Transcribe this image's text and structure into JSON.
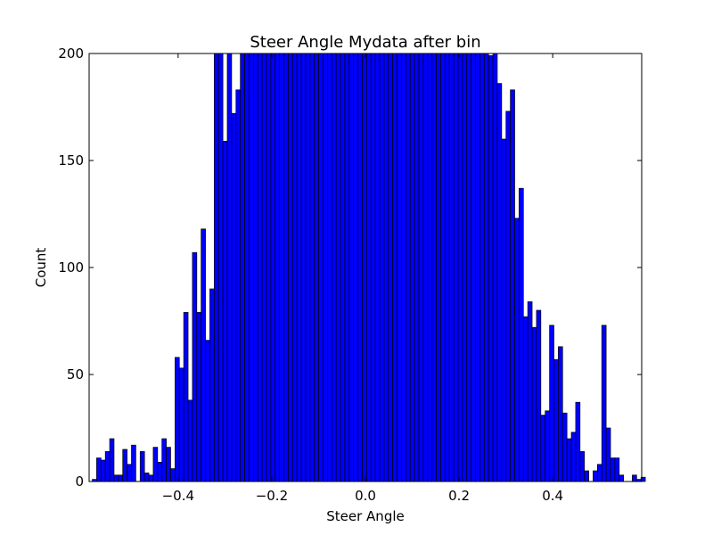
{
  "chart_data": {
    "type": "bar",
    "title": "Steer Angle Mydata after bin",
    "xlabel": "Steer Angle",
    "ylabel": "Count",
    "xlim": [
      -0.59,
      0.59
    ],
    "ylim": [
      0,
      200
    ],
    "xticks": [
      {
        "value": -0.4,
        "label": "−0.4"
      },
      {
        "value": -0.2,
        "label": "−0.2"
      },
      {
        "value": 0.0,
        "label": "0.0"
      },
      {
        "value": 0.2,
        "label": "0.2"
      },
      {
        "value": 0.4,
        "label": "0.4"
      }
    ],
    "yticks": [
      {
        "value": 0,
        "label": "0"
      },
      {
        "value": 50,
        "label": "50"
      },
      {
        "value": 100,
        "label": "100"
      },
      {
        "value": 150,
        "label": "150"
      },
      {
        "value": 200,
        "label": "200"
      }
    ],
    "bar_color": "#0000ff",
    "grid": false,
    "bin_width": 0.0093,
    "bin_start": -0.5833,
    "values": [
      1,
      11,
      10,
      14,
      20,
      3,
      3,
      15,
      8,
      17,
      0,
      14,
      4,
      3,
      16,
      9,
      20,
      16,
      6,
      58,
      53,
      79,
      38,
      107,
      79,
      118,
      66,
      90,
      200,
      200,
      159,
      200,
      172,
      183,
      200,
      200,
      200,
      200,
      200,
      200,
      200,
      200,
      200,
      200,
      200,
      200,
      200,
      200,
      200,
      200,
      200,
      200,
      200,
      200,
      200,
      200,
      200,
      200,
      200,
      200,
      200,
      200,
      200,
      200,
      200,
      200,
      200,
      200,
      200,
      200,
      200,
      200,
      200,
      200,
      200,
      200,
      200,
      200,
      200,
      200,
      200,
      200,
      200,
      200,
      200,
      200,
      200,
      200,
      200,
      200,
      200,
      199,
      200,
      186,
      160,
      173,
      183,
      123,
      137,
      77,
      84,
      72,
      80,
      31,
      33,
      73,
      57,
      63,
      32,
      20,
      23,
      37,
      14,
      5,
      0,
      5,
      8,
      73,
      25,
      11,
      11,
      3,
      0,
      0,
      3,
      1,
      2
    ]
  }
}
